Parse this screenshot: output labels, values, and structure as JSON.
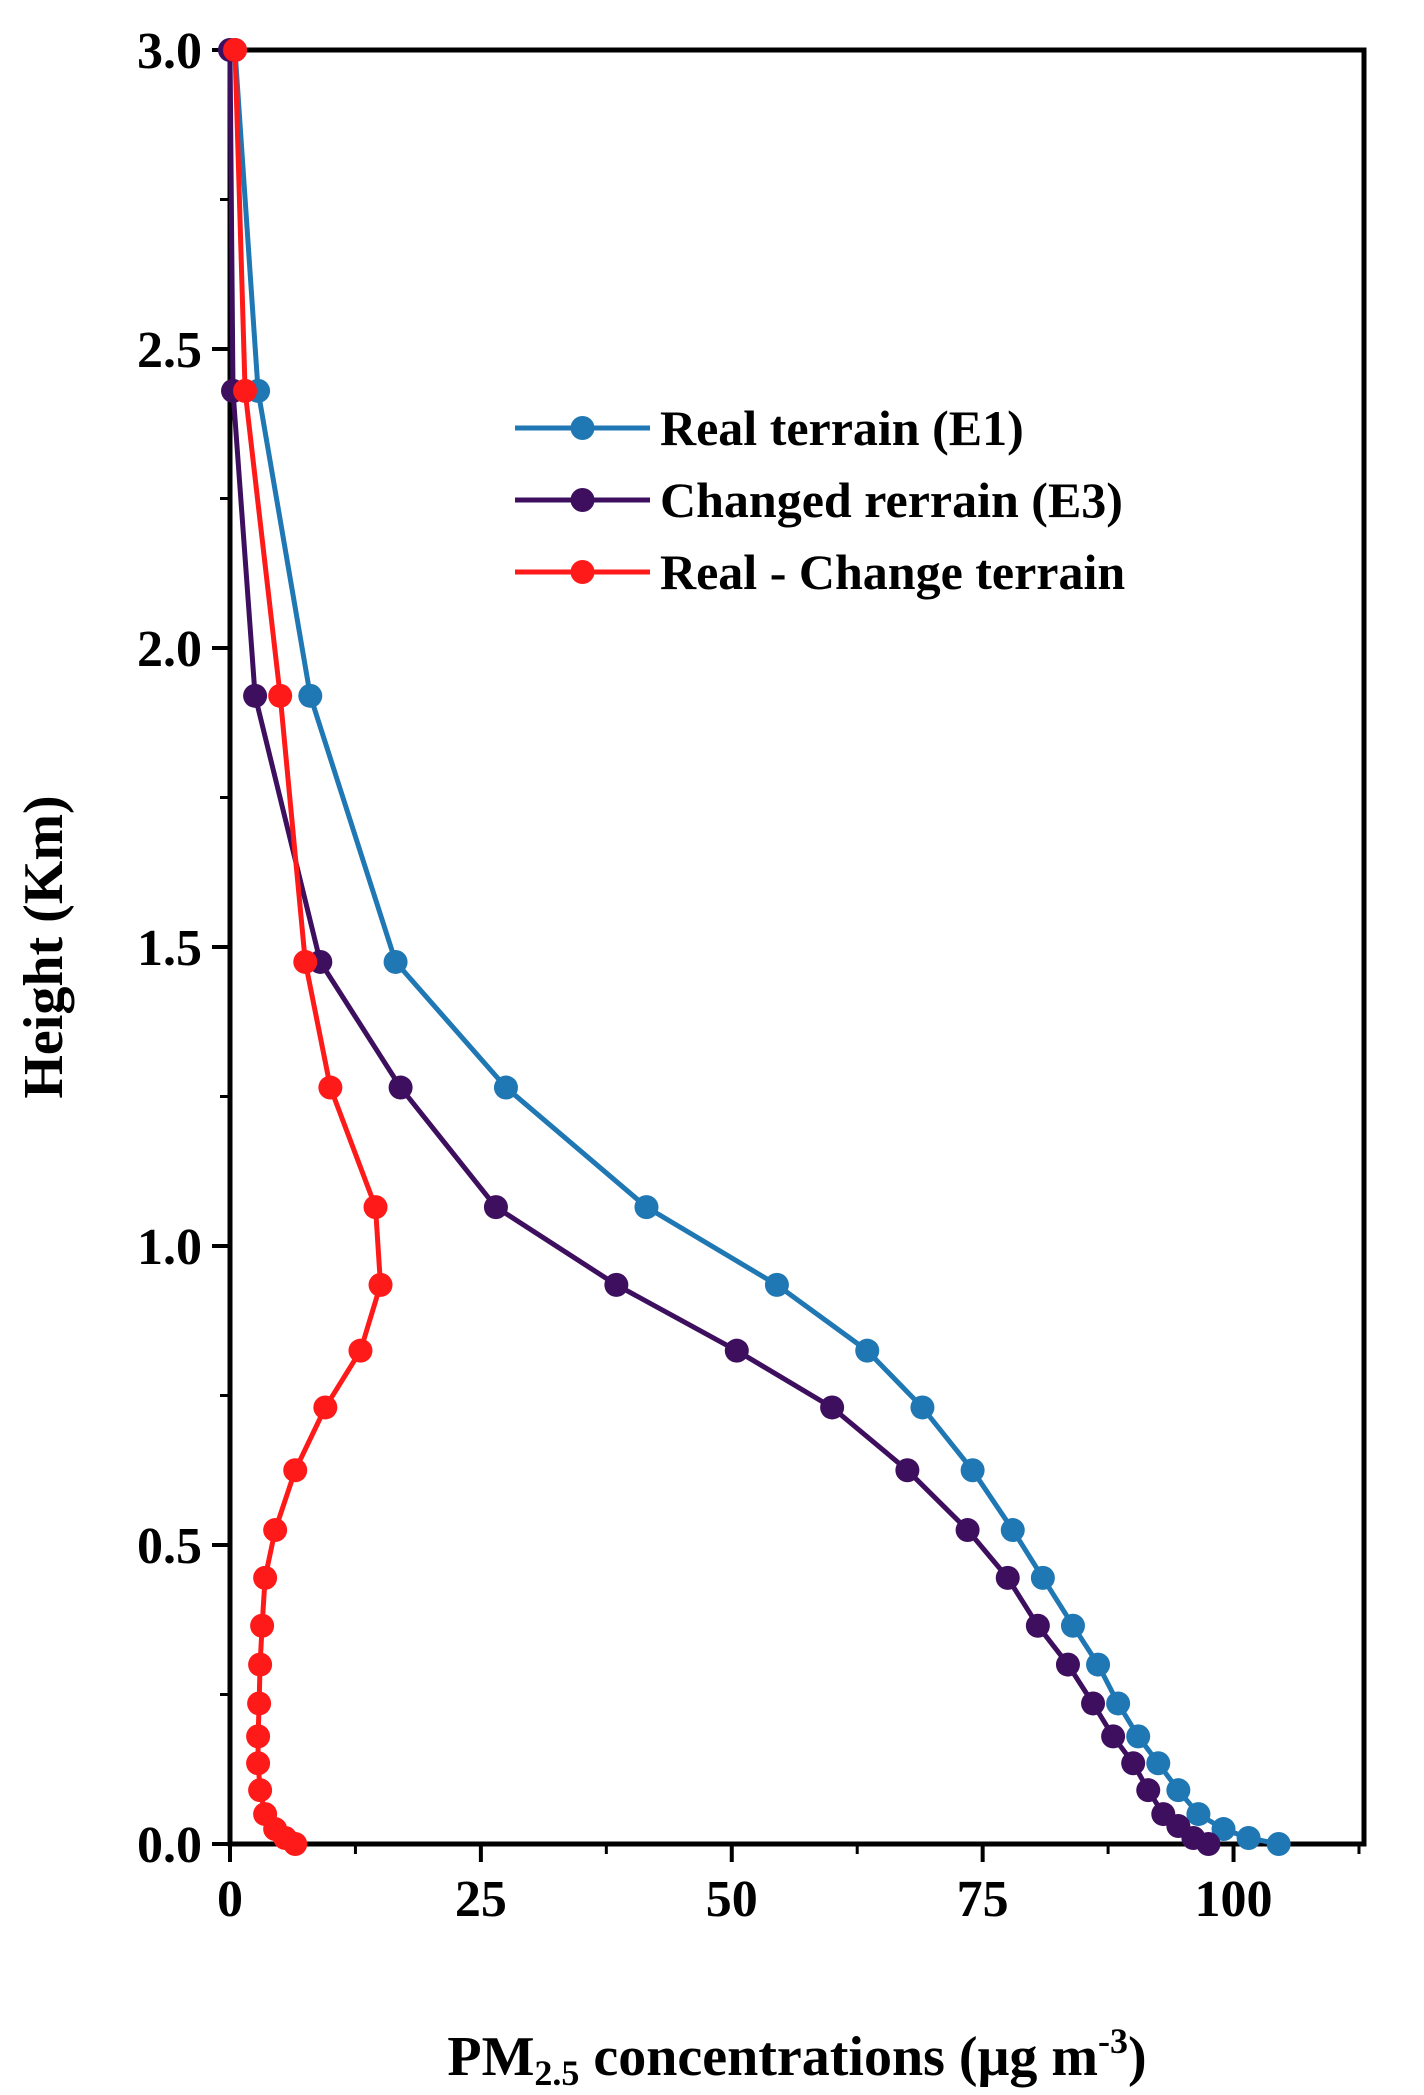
{
  "chart_data": {
    "type": "line",
    "xlabel": {
      "main": "PM",
      "sub": "2.5",
      "rest": " concentrations (μg m",
      "sup": "-3",
      "close": ")"
    },
    "ylabel": "Height (Km)",
    "xlim": [
      0,
      113
    ],
    "ylim": [
      0,
      3.0
    ],
    "xticks": [
      "0",
      "25",
      "50",
      "75",
      "100"
    ],
    "xtick_values": [
      0,
      25,
      50,
      75,
      100
    ],
    "yticks": [
      "0.0",
      "0.5",
      "1.0",
      "1.5",
      "2.0",
      "2.5",
      "3.0"
    ],
    "ytick_values": [
      0,
      0.5,
      1.0,
      1.5,
      2.0,
      2.5,
      3.0
    ],
    "grid": false,
    "legend_position": "upper-right",
    "series": [
      {
        "name": "Real terrain (E1)",
        "color": "#1f77b4",
        "points": [
          [
            104.5,
            0.0
          ],
          [
            101.5,
            0.01
          ],
          [
            99.0,
            0.025
          ],
          [
            96.5,
            0.05
          ],
          [
            94.5,
            0.09
          ],
          [
            92.5,
            0.135
          ],
          [
            90.5,
            0.18
          ],
          [
            88.5,
            0.235
          ],
          [
            86.5,
            0.3
          ],
          [
            84.0,
            0.365
          ],
          [
            81.0,
            0.445
          ],
          [
            78.0,
            0.525
          ],
          [
            74.0,
            0.625
          ],
          [
            69.0,
            0.73
          ],
          [
            63.5,
            0.825
          ],
          [
            54.5,
            0.935
          ],
          [
            41.5,
            1.065
          ],
          [
            27.5,
            1.265
          ],
          [
            16.5,
            1.475
          ],
          [
            8.0,
            1.92
          ],
          [
            2.8,
            2.43
          ],
          [
            0.5,
            3.0
          ]
        ]
      },
      {
        "name": "Changed rerrain (E3)",
        "color": "#3d0f5e",
        "points": [
          [
            97.5,
            0.0
          ],
          [
            96.0,
            0.01
          ],
          [
            94.5,
            0.03
          ],
          [
            93.0,
            0.05
          ],
          [
            91.5,
            0.09
          ],
          [
            90.0,
            0.135
          ],
          [
            88.0,
            0.18
          ],
          [
            86.0,
            0.235
          ],
          [
            83.5,
            0.3
          ],
          [
            80.5,
            0.365
          ],
          [
            77.5,
            0.445
          ],
          [
            73.5,
            0.525
          ],
          [
            67.5,
            0.625
          ],
          [
            60.0,
            0.73
          ],
          [
            50.5,
            0.825
          ],
          [
            38.5,
            0.935
          ],
          [
            26.5,
            1.065
          ],
          [
            17.0,
            1.265
          ],
          [
            9.0,
            1.475
          ],
          [
            2.5,
            1.92
          ],
          [
            0.3,
            2.43
          ],
          [
            0.0,
            3.0
          ]
        ]
      },
      {
        "name": "Real - Change terrain",
        "color": "#ff1a1a",
        "points": [
          [
            6.5,
            0.0
          ],
          [
            5.5,
            0.01
          ],
          [
            4.5,
            0.025
          ],
          [
            3.5,
            0.05
          ],
          [
            3.0,
            0.09
          ],
          [
            2.8,
            0.135
          ],
          [
            2.8,
            0.18
          ],
          [
            2.9,
            0.235
          ],
          [
            3.0,
            0.3
          ],
          [
            3.2,
            0.365
          ],
          [
            3.5,
            0.445
          ],
          [
            4.5,
            0.525
          ],
          [
            6.5,
            0.625
          ],
          [
            9.5,
            0.73
          ],
          [
            13.0,
            0.825
          ],
          [
            15.0,
            0.935
          ],
          [
            14.5,
            1.065
          ],
          [
            10.0,
            1.265
          ],
          [
            7.5,
            1.475
          ],
          [
            5.0,
            1.92
          ],
          [
            1.5,
            2.43
          ],
          [
            0.5,
            3.0
          ]
        ]
      }
    ]
  }
}
